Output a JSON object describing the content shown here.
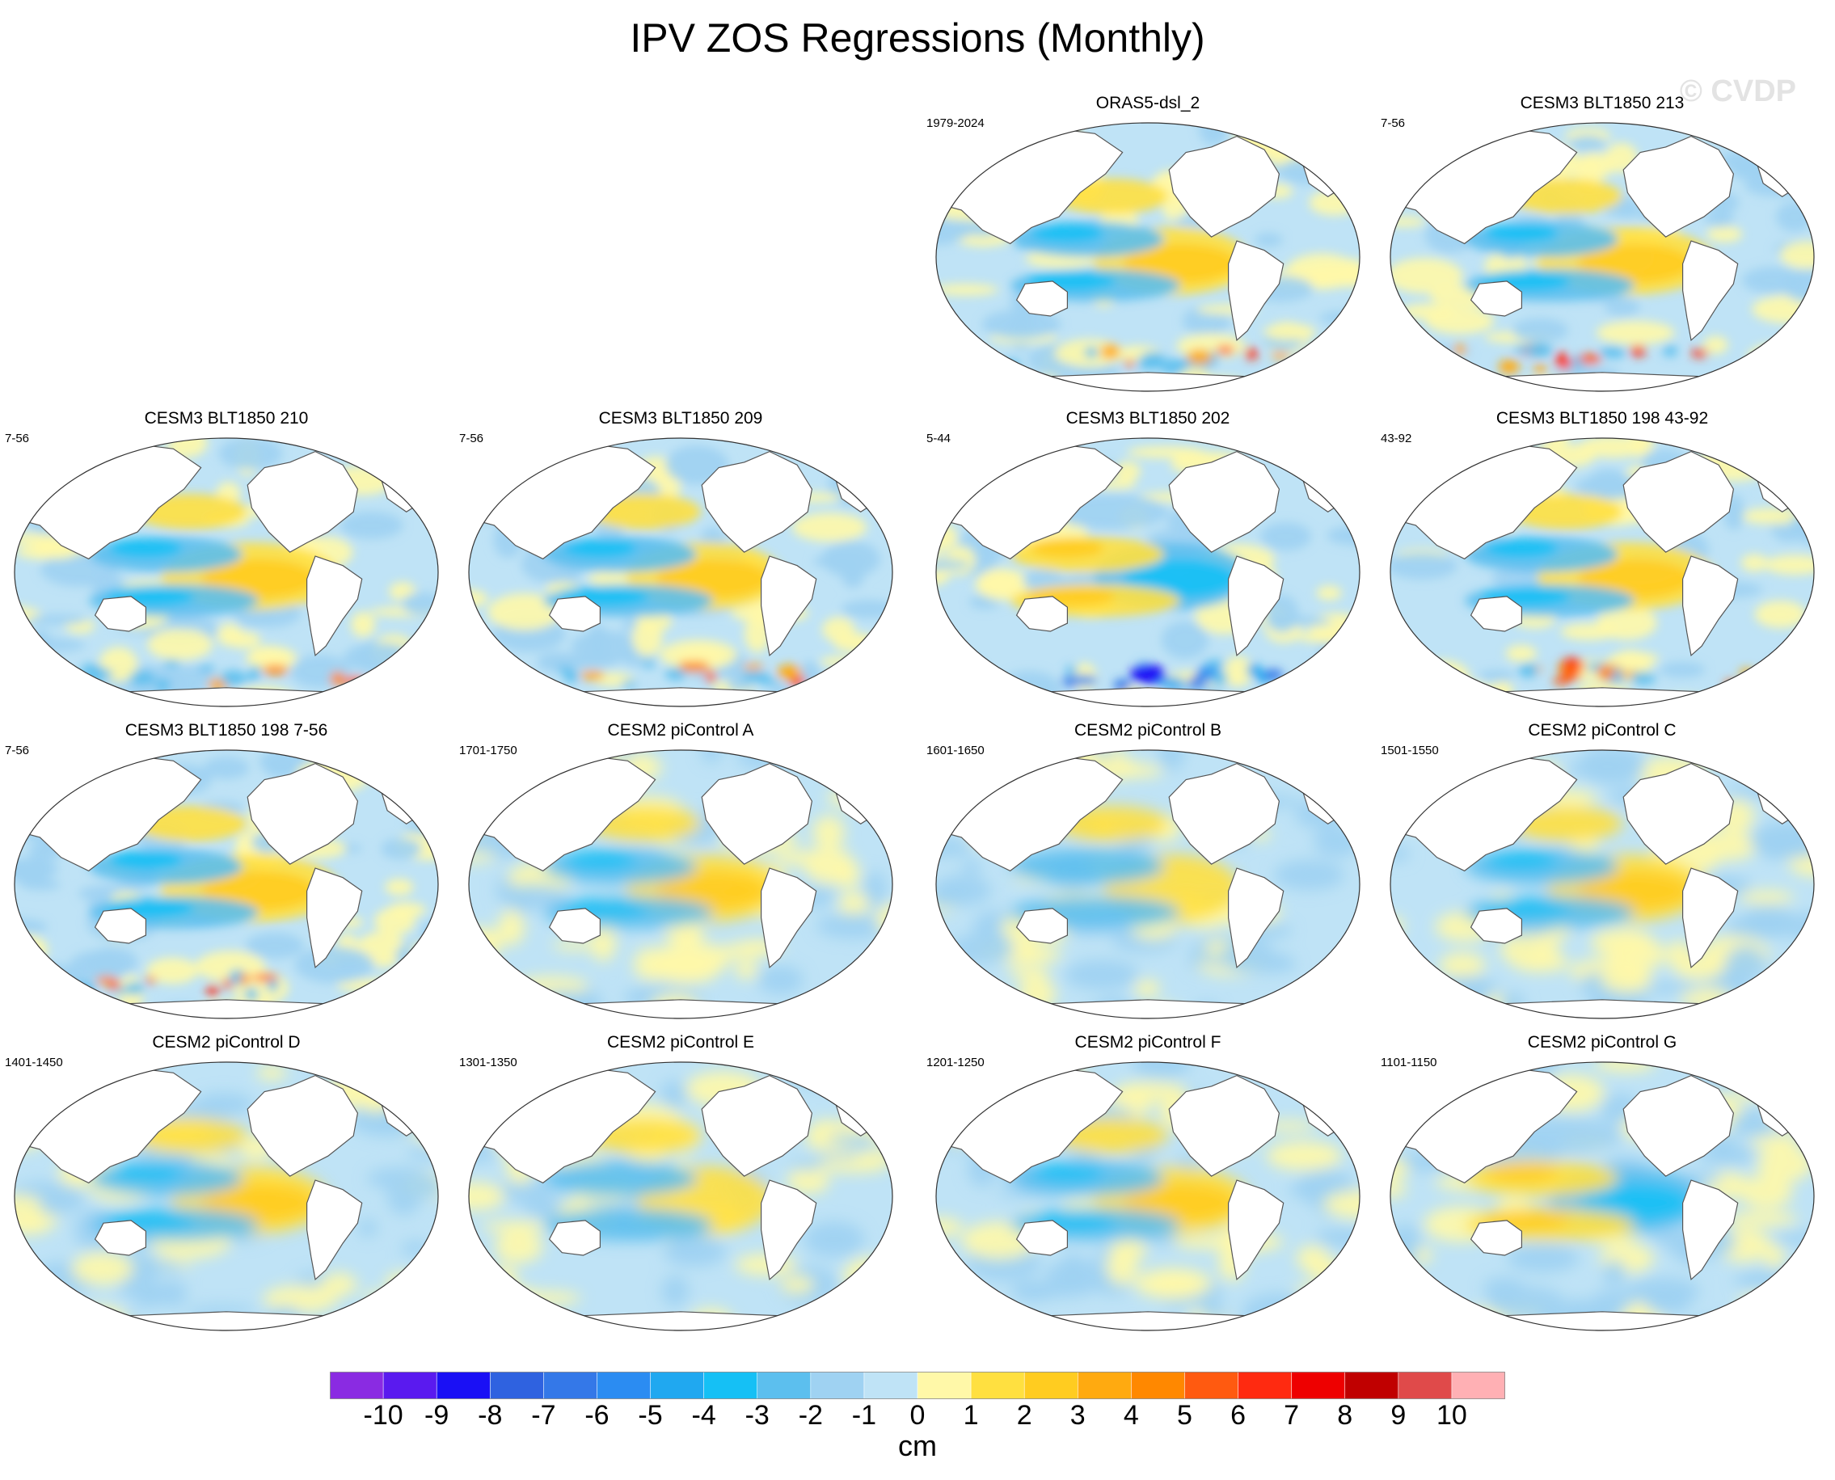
{
  "title": "IPV ZOS Regressions (Monthly)",
  "watermark": "© CVDP",
  "panels": [
    {
      "title": "ORAS5-dsl_2",
      "years": "1979-2024",
      "scheme": "obs"
    },
    {
      "title": "CESM3 BLT1850 213",
      "years": "7-56",
      "scheme": "strong"
    },
    {
      "title": "CESM3 BLT1850 210",
      "years": "7-56",
      "scheme": "strong"
    },
    {
      "title": "CESM3 BLT1850 209",
      "years": "7-56",
      "scheme": "medium"
    },
    {
      "title": "CESM3 BLT1850 202",
      "years": "5-44",
      "scheme": "negative"
    },
    {
      "title": "CESM3 BLT1850 198 43-92",
      "years": "43-92",
      "scheme": "strong"
    },
    {
      "title": "CESM3 BLT1850 198 7-56",
      "years": "7-56",
      "scheme": "strong"
    },
    {
      "title": "CESM2 piControl A",
      "years": "1701-1750",
      "scheme": "smooth"
    },
    {
      "title": "CESM2 piControl B",
      "years": "1601-1650",
      "scheme": "weak"
    },
    {
      "title": "CESM2 piControl C",
      "years": "1501-1550",
      "scheme": "smooth"
    },
    {
      "title": "CESM2 piControl D",
      "years": "1401-1450",
      "scheme": "smooth"
    },
    {
      "title": "CESM2 piControl E",
      "years": "1301-1350",
      "scheme": "weak"
    },
    {
      "title": "CESM2 piControl F",
      "years": "1201-1250",
      "scheme": "smooth"
    },
    {
      "title": "CESM2 piControl G",
      "years": "1101-1150",
      "scheme": "negsmooth"
    }
  ],
  "colorbar": {
    "units": "cm",
    "labels": [
      "-10",
      "-9",
      "-8",
      "-7",
      "-6",
      "-5",
      "-4",
      "-3",
      "-2",
      "-1",
      "0",
      "1",
      "2",
      "3",
      "4",
      "5",
      "6",
      "7",
      "8",
      "9",
      "10"
    ],
    "colors": [
      "#8a2be2",
      "#5a1aef",
      "#1a10f5",
      "#2f62e0",
      "#3478e8",
      "#2b8cf2",
      "#20a8f0",
      "#15c0f5",
      "#5cbfee",
      "#9fd2f2",
      "#bfe3f6",
      "#fff8a8",
      "#ffe040",
      "#ffcc20",
      "#ffaa10",
      "#ff8800",
      "#ff5a10",
      "#ff2a10",
      "#ee0000",
      "#c00000",
      "#e04a4a",
      "#ffb0b4"
    ]
  }
}
